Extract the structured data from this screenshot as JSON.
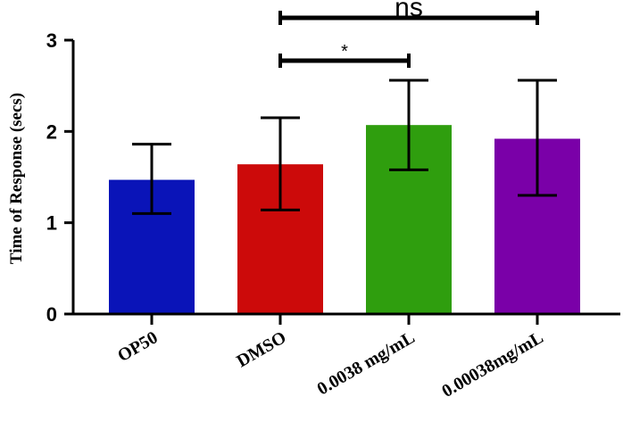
{
  "chart_data": {
    "type": "bar",
    "title": "",
    "xlabel": "",
    "ylabel": "Time of Response (secs)",
    "ylim": [
      0,
      3
    ],
    "yticks": [
      "0",
      "1",
      "2",
      "3"
    ],
    "categories": [
      "OP50",
      "DMSO",
      "0.0038 mg/mL",
      "0.00038mg/mL"
    ],
    "values": [
      1.47,
      1.64,
      2.07,
      1.92
    ],
    "error_low": [
      1.1,
      1.14,
      1.58,
      1.3
    ],
    "error_high": [
      1.86,
      2.15,
      2.56,
      2.56
    ],
    "colors": [
      "#0a14b8",
      "#cc0a0a",
      "#2f9e0e",
      "#7a00a8"
    ],
    "significance": [
      {
        "from": 1,
        "to": 2,
        "label": "*"
      },
      {
        "from": 1,
        "to": 3,
        "label": "ns"
      }
    ]
  }
}
